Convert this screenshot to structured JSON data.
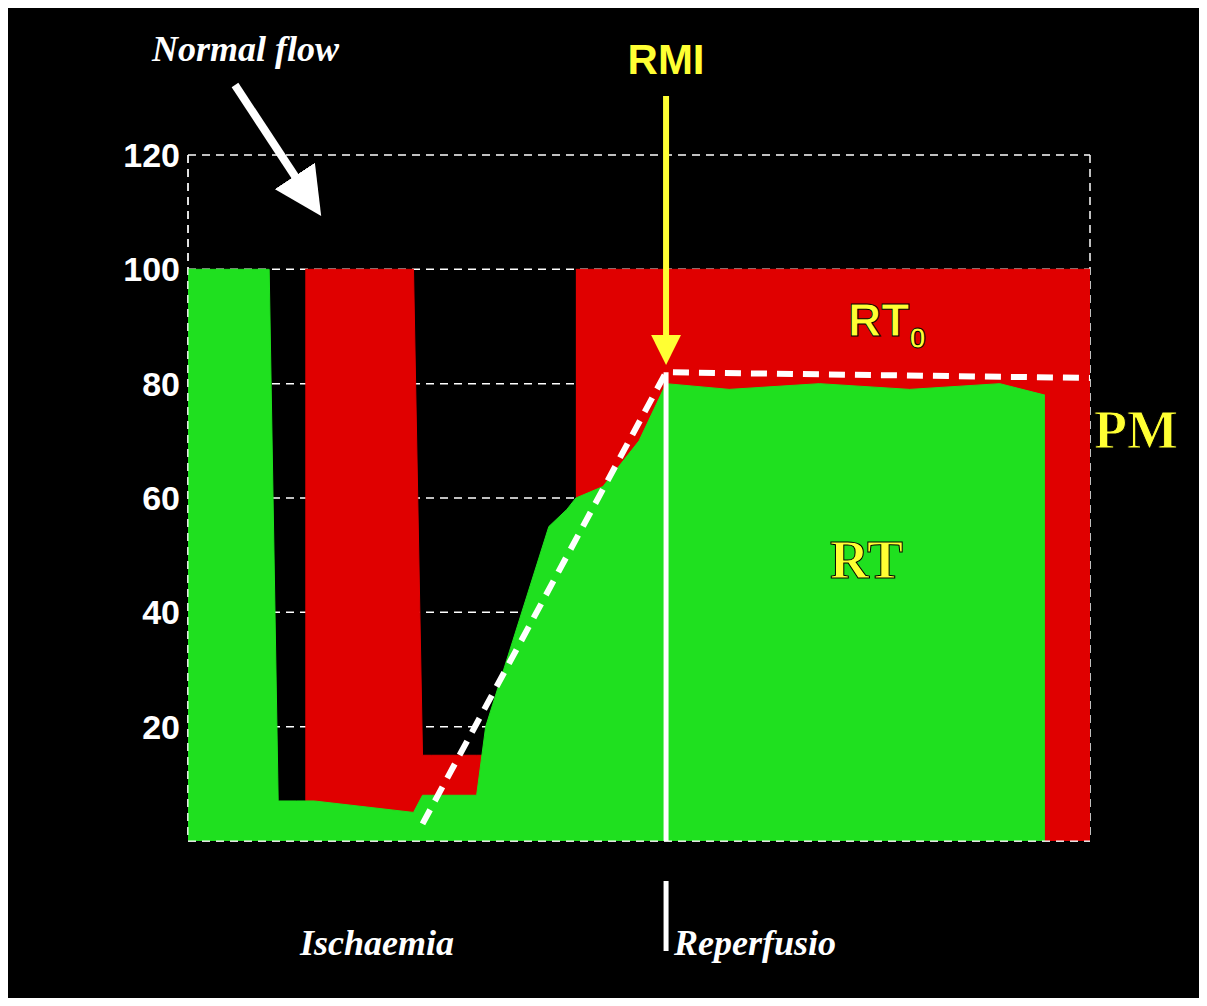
{
  "chart_data": {
    "type": "area",
    "x": [
      0,
      9,
      10,
      12,
      13,
      14,
      25,
      26,
      27,
      32,
      33,
      36,
      40,
      42,
      43,
      46,
      50,
      53,
      60,
      70,
      80,
      90,
      95,
      100
    ],
    "series": [
      {
        "name": "RT",
        "color": "#1fe01f",
        "type": "area",
        "values": [
          100,
          100,
          7,
          7,
          7,
          7,
          5,
          8,
          8,
          8,
          20,
          35,
          55,
          58,
          60,
          62,
          70,
          80,
          79,
          80,
          79,
          80,
          78,
          null
        ]
      },
      {
        "name": "RT",
        "subscript": "0",
        "color": "#e00000",
        "type": "area",
        "values": [
          null,
          null,
          null,
          null,
          100,
          100,
          100,
          15,
          15,
          15,
          15,
          null,
          null,
          null,
          100,
          100,
          100,
          100,
          100,
          100,
          100,
          100,
          100,
          100
        ]
      },
      {
        "name": "PM",
        "color": "#ffffff",
        "type": "line",
        "line_style": "dashed",
        "values": [
          null,
          null,
          null,
          null,
          null,
          null,
          null,
          3,
          null,
          null,
          null,
          null,
          null,
          null,
          null,
          null,
          null,
          82,
          null,
          null,
          null,
          null,
          null,
          81
        ]
      }
    ],
    "annotations": [
      {
        "text": "Normal flow"
      },
      {
        "text": "Ischaemia"
      },
      {
        "text": "RMI",
        "x": 53
      },
      {
        "text": "Reperfusio",
        "x": 53
      }
    ],
    "xlim": [
      0,
      100
    ],
    "xticks": [
      0,
      10,
      20,
      30,
      40,
      50,
      60,
      70,
      80,
      90,
      100
    ],
    "ylim": [
      0,
      120
    ],
    "yticks": [
      20,
      40,
      60,
      80,
      100,
      120
    ],
    "grid": true,
    "tick_labels": "y"
  }
}
